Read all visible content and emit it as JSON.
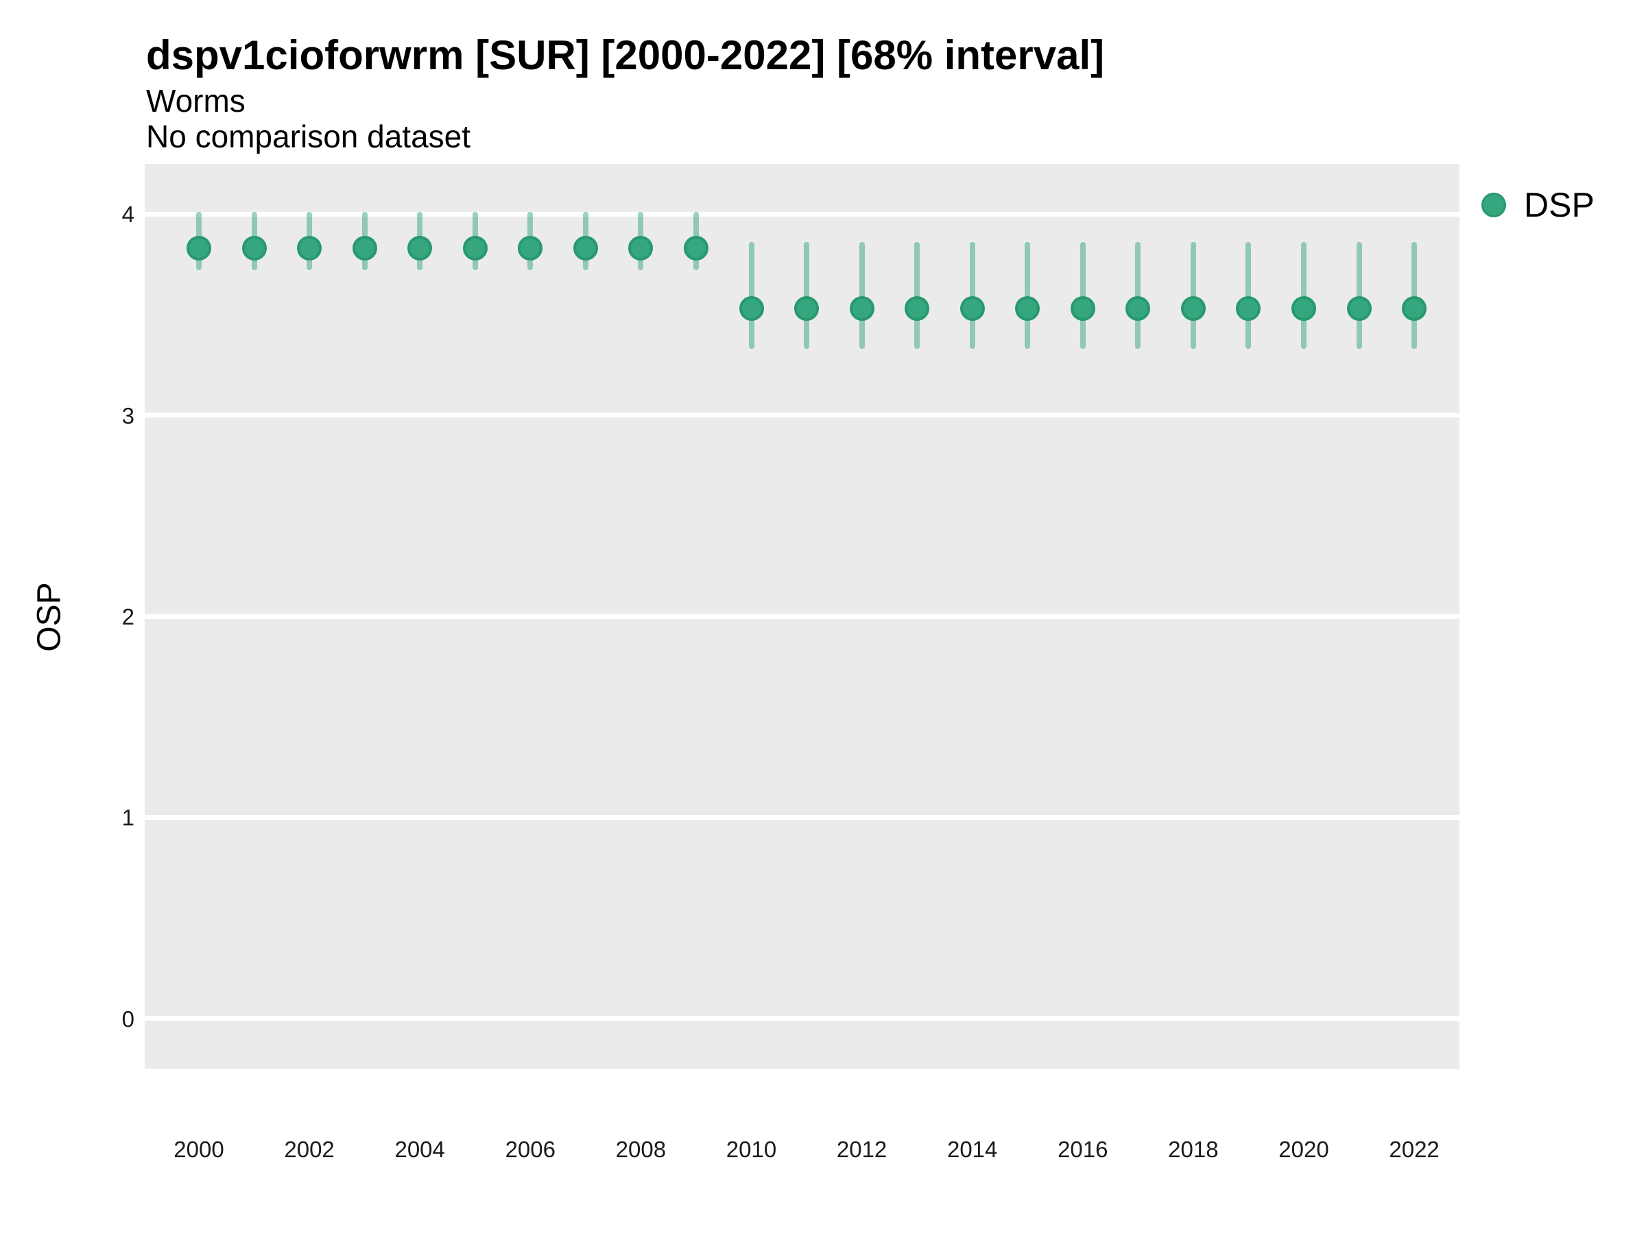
{
  "header": {
    "title": "dspv1cioforwrm [SUR] [2000-2022] [68% interval]",
    "subtitle": "Worms",
    "caption": "No comparison dataset"
  },
  "legend": {
    "position": "right",
    "entries": [
      {
        "label": "DSP",
        "swatch": "point-icon",
        "color": "#35a67e"
      }
    ]
  },
  "colors": {
    "panel_bg": "#EBEBEB",
    "gridline": "#FFFFFF",
    "point_fill": "#35a67e",
    "point_stroke": "#27996f",
    "interval_bar": "rgba(53,166,126,0.5)",
    "text": "#000000"
  },
  "chart_data": {
    "type": "scatter",
    "title": "dspv1cioforwrm [SUR] [2000-2022] [68% interval]",
    "subtitle": "Worms",
    "annotation": "No comparison dataset",
    "xlabel": "",
    "ylabel": "OSP",
    "ylim": [
      -0.25,
      4.25
    ],
    "y_ticks": [
      0,
      1,
      2,
      3,
      4
    ],
    "x_tick_labels": [
      "2000",
      "2002",
      "2004",
      "2006",
      "2008",
      "2010",
      "2012",
      "2014",
      "2016",
      "2018",
      "2020",
      "2022"
    ],
    "grid": "horizontal-major-only",
    "legend_position": "right",
    "series": [
      {
        "name": "DSP",
        "interval": "68%",
        "points": [
          {
            "year": 2000,
            "value": 3.83,
            "lo": 3.72,
            "hi": 4.01
          },
          {
            "year": 2001,
            "value": 3.83,
            "lo": 3.72,
            "hi": 4.01
          },
          {
            "year": 2002,
            "value": 3.83,
            "lo": 3.72,
            "hi": 4.01
          },
          {
            "year": 2003,
            "value": 3.83,
            "lo": 3.72,
            "hi": 4.01
          },
          {
            "year": 2004,
            "value": 3.83,
            "lo": 3.72,
            "hi": 4.01
          },
          {
            "year": 2005,
            "value": 3.83,
            "lo": 3.72,
            "hi": 4.01
          },
          {
            "year": 2006,
            "value": 3.83,
            "lo": 3.72,
            "hi": 4.01
          },
          {
            "year": 2007,
            "value": 3.83,
            "lo": 3.72,
            "hi": 4.01
          },
          {
            "year": 2008,
            "value": 3.83,
            "lo": 3.72,
            "hi": 4.01
          },
          {
            "year": 2009,
            "value": 3.83,
            "lo": 3.72,
            "hi": 4.01
          },
          {
            "year": 2010,
            "value": 3.53,
            "lo": 3.33,
            "hi": 3.86
          },
          {
            "year": 2011,
            "value": 3.53,
            "lo": 3.33,
            "hi": 3.86
          },
          {
            "year": 2012,
            "value": 3.53,
            "lo": 3.33,
            "hi": 3.86
          },
          {
            "year": 2013,
            "value": 3.53,
            "lo": 3.33,
            "hi": 3.86
          },
          {
            "year": 2014,
            "value": 3.53,
            "lo": 3.33,
            "hi": 3.86
          },
          {
            "year": 2015,
            "value": 3.53,
            "lo": 3.33,
            "hi": 3.86
          },
          {
            "year": 2016,
            "value": 3.53,
            "lo": 3.33,
            "hi": 3.86
          },
          {
            "year": 2017,
            "value": 3.53,
            "lo": 3.33,
            "hi": 3.86
          },
          {
            "year": 2018,
            "value": 3.53,
            "lo": 3.33,
            "hi": 3.86
          },
          {
            "year": 2019,
            "value": 3.53,
            "lo": 3.33,
            "hi": 3.86
          },
          {
            "year": 2020,
            "value": 3.53,
            "lo": 3.33,
            "hi": 3.86
          },
          {
            "year": 2021,
            "value": 3.53,
            "lo": 3.33,
            "hi": 3.86
          },
          {
            "year": 2022,
            "value": 3.53,
            "lo": 3.33,
            "hi": 3.86
          }
        ]
      }
    ]
  }
}
